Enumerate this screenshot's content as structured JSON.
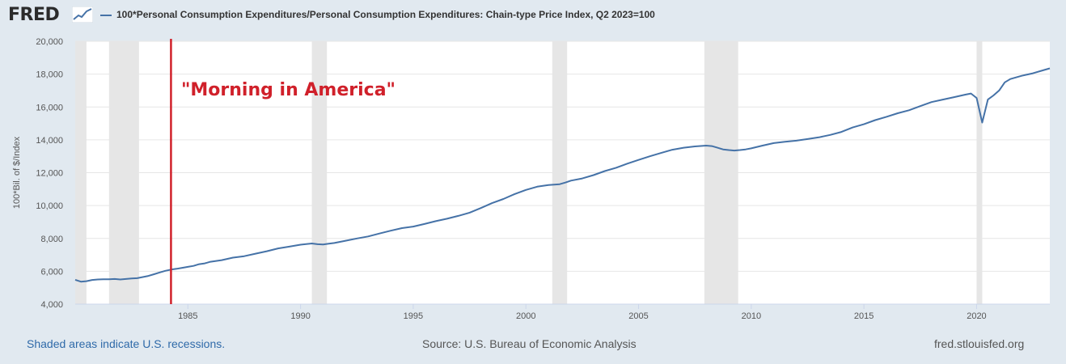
{
  "header": {
    "logo_text": "FRED",
    "legend_text": "100*Personal Consumption Expenditures/Personal Consumption Expenditures: Chain-type Price Index, Q2 2023=100"
  },
  "footer": {
    "recession_note": "Shaded areas indicate U.S. recessions.",
    "source": "Source: U.S. Bureau of Economic Analysis",
    "site": "fred.stlouisfed.org"
  },
  "colors": {
    "line": "#4572a7",
    "marker": "#d0202a",
    "annotation": "#d0202a",
    "recession": "#e6e6e6",
    "grid": "#e6e6e6"
  },
  "chart_data": {
    "type": "line",
    "title": "",
    "xlabel": "",
    "ylabel": "100*Bil. of $/Index",
    "xlim": [
      1980.0,
      2023.25
    ],
    "ylim": [
      4000,
      20000
    ],
    "yticks": [
      "4,000",
      "6,000",
      "8,000",
      "10,000",
      "12,000",
      "14,000",
      "16,000",
      "18,000",
      "20,000"
    ],
    "ytick_values": [
      4000,
      6000,
      8000,
      10000,
      12000,
      14000,
      16000,
      18000,
      20000
    ],
    "xticks": [
      "1985",
      "1990",
      "1995",
      "2000",
      "2005",
      "2010",
      "2015",
      "2020"
    ],
    "xtick_values": [
      1985,
      1990,
      1995,
      2000,
      2005,
      2010,
      2015,
      2020
    ],
    "grid": "horizontal",
    "recessions": [
      [
        1980.0,
        1980.5
      ],
      [
        1981.5,
        1982.83
      ],
      [
        1990.5,
        1991.17
      ],
      [
        2001.17,
        2001.83
      ],
      [
        2007.92,
        2009.42
      ],
      [
        2020.0,
        2020.25
      ]
    ],
    "vertical_marker": {
      "x": 1984.25
    },
    "annotation": {
      "text": "\"Morning in America\"",
      "x": 1984.7,
      "y": 16700
    },
    "series": [
      {
        "name": "100*Personal Consumption Expenditures/Personal Consumption Expenditures: Chain-type Price Index, Q2 2023=100",
        "x": [
          1980.0,
          1980.25,
          1980.5,
          1980.75,
          1981.0,
          1981.25,
          1981.5,
          1981.75,
          1982.0,
          1982.25,
          1982.5,
          1982.75,
          1983.0,
          1983.25,
          1983.5,
          1983.75,
          1984.0,
          1984.25,
          1984.5,
          1984.75,
          1985.0,
          1985.25,
          1985.5,
          1985.75,
          1986.0,
          1986.5,
          1987.0,
          1987.5,
          1988.0,
          1988.5,
          1989.0,
          1989.5,
          1990.0,
          1990.5,
          1990.75,
          1991.0,
          1991.25,
          1991.5,
          1992.0,
          1992.5,
          1993.0,
          1993.5,
          1994.0,
          1994.5,
          1995.0,
          1995.5,
          1996.0,
          1996.5,
          1997.0,
          1997.5,
          1998.0,
          1998.5,
          1999.0,
          1999.5,
          2000.0,
          2000.5,
          2001.0,
          2001.5,
          2001.75,
          2002.0,
          2002.5,
          2003.0,
          2003.5,
          2004.0,
          2004.5,
          2005.0,
          2005.5,
          2006.0,
          2006.5,
          2007.0,
          2007.5,
          2008.0,
          2008.25,
          2008.5,
          2008.75,
          2009.0,
          2009.25,
          2009.5,
          2009.75,
          2010.0,
          2010.5,
          2011.0,
          2011.5,
          2012.0,
          2012.5,
          2013.0,
          2013.5,
          2014.0,
          2014.5,
          2015.0,
          2015.5,
          2016.0,
          2016.5,
          2017.0,
          2017.5,
          2018.0,
          2018.5,
          2019.0,
          2019.5,
          2019.75,
          2020.0,
          2020.25,
          2020.5,
          2020.75,
          2021.0,
          2021.25,
          2021.5,
          2022.0,
          2022.5,
          2023.0,
          2023.25
        ],
        "values": [
          5480,
          5370,
          5400,
          5470,
          5500,
          5510,
          5510,
          5530,
          5500,
          5530,
          5560,
          5580,
          5650,
          5720,
          5820,
          5930,
          6030,
          6100,
          6150,
          6210,
          6270,
          6330,
          6430,
          6480,
          6580,
          6680,
          6830,
          6920,
          7070,
          7220,
          7390,
          7500,
          7620,
          7690,
          7650,
          7630,
          7680,
          7720,
          7860,
          8000,
          8120,
          8300,
          8470,
          8630,
          8720,
          8880,
          9050,
          9200,
          9370,
          9570,
          9850,
          10150,
          10400,
          10700,
          10950,
          11150,
          11250,
          11300,
          11400,
          11520,
          11650,
          11850,
          12100,
          12300,
          12550,
          12780,
          13000,
          13200,
          13400,
          13520,
          13600,
          13650,
          13620,
          13520,
          13420,
          13380,
          13350,
          13380,
          13420,
          13480,
          13650,
          13800,
          13880,
          13950,
          14050,
          14150,
          14300,
          14480,
          14750,
          14950,
          15200,
          15400,
          15620,
          15800,
          16050,
          16300,
          16450,
          16600,
          16750,
          16820,
          16550,
          15050,
          16450,
          16700,
          17000,
          17500,
          17700,
          17900,
          18050,
          18250,
          18350
        ]
      }
    ]
  }
}
